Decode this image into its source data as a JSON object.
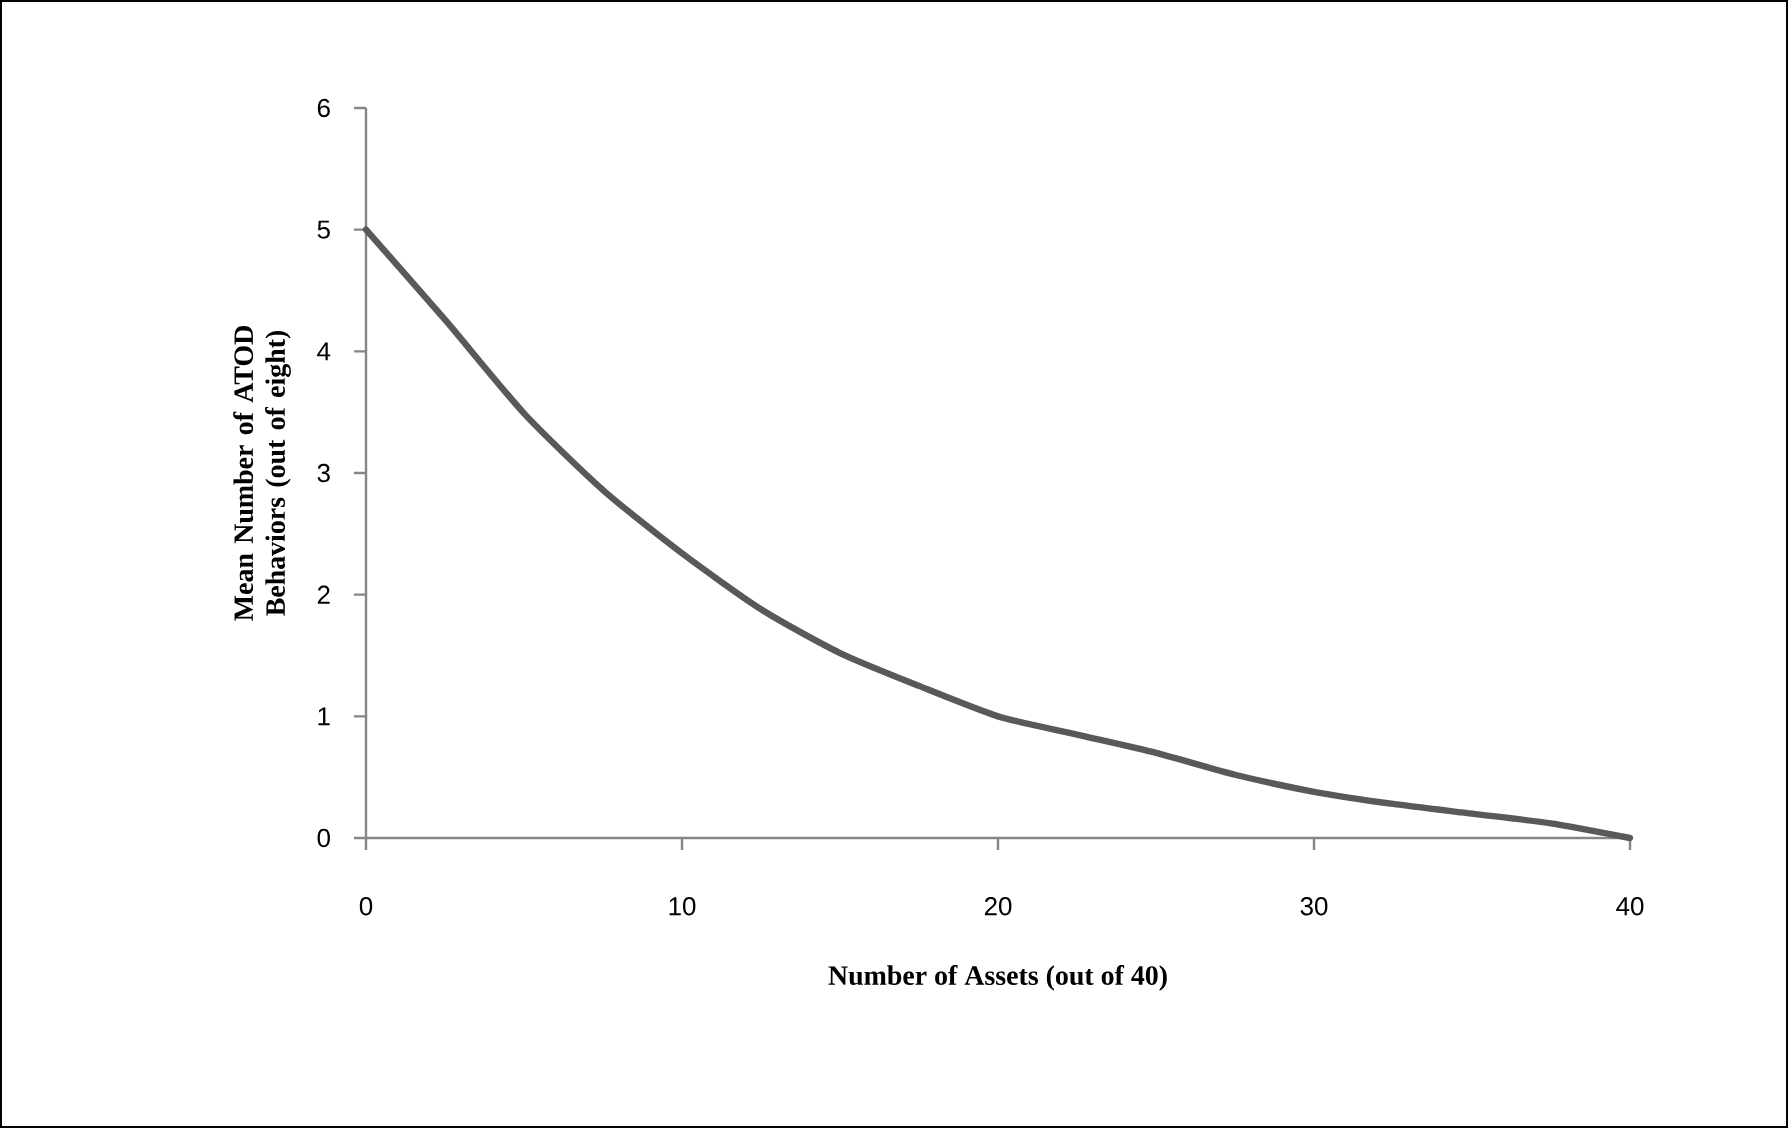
{
  "chart_data": {
    "type": "line",
    "xlabel": "Number of Assets (out of 40)",
    "ylabel": "Mean Number of ATOD Behaviors (out of eight)",
    "xlim": [
      0,
      40
    ],
    "ylim": [
      0,
      6
    ],
    "xticks": [
      0,
      10,
      20,
      30,
      40
    ],
    "yticks": [
      0,
      1,
      2,
      3,
      4,
      5,
      6
    ],
    "series": [
      {
        "color": "#595959",
        "x": [
          0,
          2.5,
          5,
          7.5,
          10,
          12.5,
          15,
          17.5,
          20,
          22.5,
          25,
          27.5,
          30,
          32.5,
          35,
          37.5,
          40
        ],
        "values": [
          5.0,
          4.26,
          3.49,
          2.86,
          2.34,
          1.88,
          1.52,
          1.25,
          1.0,
          0.85,
          0.7,
          0.52,
          0.38,
          0.28,
          0.2,
          0.12,
          0.0
        ]
      }
    ],
    "grid": false,
    "legend": false,
    "marker": "none",
    "line_style": "solid"
  }
}
